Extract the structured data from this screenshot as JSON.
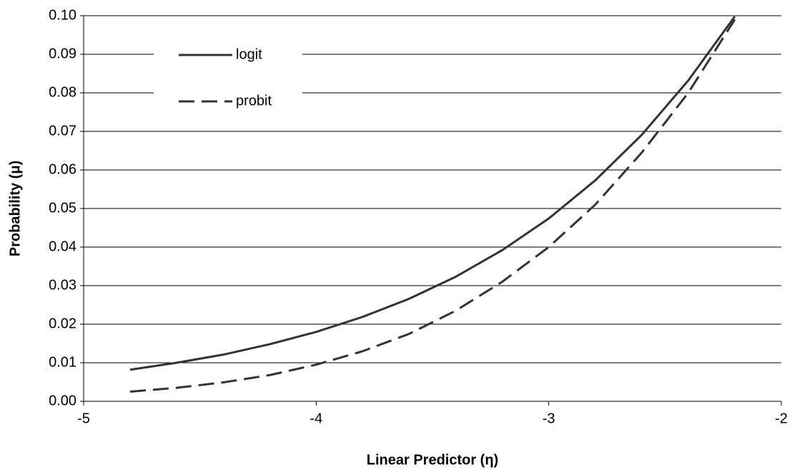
{
  "chart_data": {
    "type": "line",
    "x_label": "Linear Predictor (η)",
    "y_label": "Probability (μ)",
    "x": [
      -4.8,
      -4.6,
      -4.4,
      -4.2,
      -4.0,
      -3.8,
      -3.6,
      -3.4,
      -3.2,
      -3.0,
      -2.8,
      -2.6,
      -2.4,
      -2.2
    ],
    "series": [
      {
        "name": "logit",
        "color": "#333333",
        "line_style": "solid",
        "values": [
          0.0082,
          0.01,
          0.0121,
          0.0148,
          0.018,
          0.0219,
          0.0266,
          0.0323,
          0.0392,
          0.0474,
          0.0573,
          0.0691,
          0.0832,
          0.0998
        ]
      },
      {
        "name": "probit",
        "color": "#333333",
        "line_style": "dashed",
        "values": [
          0.0025,
          0.0035,
          0.0049,
          0.0068,
          0.0095,
          0.013,
          0.0175,
          0.0235,
          0.031,
          0.04,
          0.051,
          0.0645,
          0.08,
          0.099
        ]
      }
    ],
    "xlim": [
      -5,
      -2
    ],
    "xticks": [
      -5,
      -4,
      -3,
      -2
    ],
    "ylim": [
      0,
      0.1
    ],
    "yticks": [
      {
        "value": 0,
        "label": "0.00"
      },
      {
        "value": 0.01,
        "label": "0.01"
      },
      {
        "value": 0.02,
        "label": "0.02"
      },
      {
        "value": 0.03,
        "label": "0.03"
      },
      {
        "value": 0.04,
        "label": "0.04"
      },
      {
        "value": 0.05,
        "label": "0.05"
      },
      {
        "value": 0.06,
        "label": "0.06"
      },
      {
        "value": 0.07,
        "label": "0.07"
      },
      {
        "value": 0.08,
        "label": "0.08"
      },
      {
        "value": 0.09,
        "label": "0.09"
      },
      {
        "value": 0.1,
        "label": "0.10"
      }
    ],
    "grid": true,
    "legend": "upper-left"
  }
}
